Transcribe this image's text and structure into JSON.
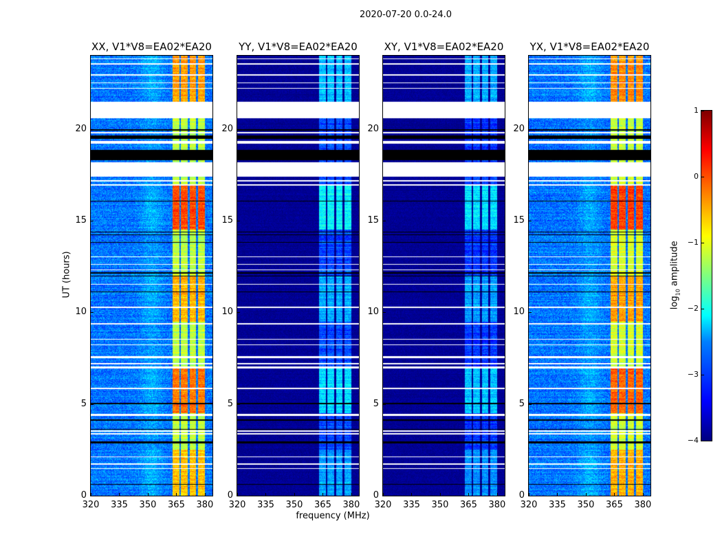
{
  "suptitle": "2020-07-20 0.0-24.0",
  "chart_data": {
    "type": "heatmap",
    "xlabel": "frequency (MHz)",
    "ylabel": "UT (hours)",
    "xlim": [
      320,
      384
    ],
    "ylim": [
      0,
      24
    ],
    "xticks": [
      "320",
      "335",
      "350",
      "365",
      "380"
    ],
    "yticks": [
      "0",
      "5",
      "10",
      "15",
      "20"
    ],
    "colormap": "jet",
    "colorbar": {
      "label_main": "log",
      "label_sub": "10",
      "label_rest": " amplitude",
      "range": [
        -4,
        1
      ],
      "ticks": [
        "−4",
        "−3",
        "−2",
        "−1",
        "0",
        "1"
      ]
    },
    "band_freqs_mhz": [
      [
        363,
        366.5
      ],
      [
        367.5,
        371
      ],
      [
        372,
        375.5
      ],
      [
        376.5,
        380
      ]
    ],
    "white_gaps_ut": [
      [
        20.6,
        21.5
      ],
      [
        17.4,
        18.2
      ],
      [
        19.2,
        19.35
      ],
      [
        19.75,
        19.85
      ],
      [
        23.5,
        23.6
      ],
      [
        23.8,
        23.85
      ],
      [
        22.9,
        23.0
      ],
      [
        22.5,
        22.55
      ],
      [
        22.2,
        22.25
      ],
      [
        16.9,
        17.0
      ],
      [
        17.15,
        17.2
      ],
      [
        12.3,
        12.35
      ],
      [
        12.6,
        12.65
      ],
      [
        13.0,
        13.05
      ],
      [
        11.5,
        11.55
      ],
      [
        10.25,
        10.3
      ],
      [
        9.35,
        9.4
      ],
      [
        8.5,
        8.55
      ],
      [
        8.2,
        8.25
      ],
      [
        7.5,
        7.6
      ],
      [
        7.15,
        7.25
      ],
      [
        6.95,
        7.05
      ],
      [
        5.8,
        5.9
      ],
      [
        4.35,
        4.45
      ],
      [
        3.5,
        3.55
      ],
      [
        3.35,
        3.4
      ],
      [
        2.1,
        2.15
      ],
      [
        1.7,
        1.75
      ],
      [
        1.45,
        1.5
      ]
    ],
    "black_gaps_ut": [
      [
        18.3,
        18.85
      ],
      [
        19.45,
        19.65
      ],
      [
        19.9,
        20.0
      ],
      [
        12.1,
        12.2
      ],
      [
        14.2,
        14.25
      ],
      [
        13.8,
        13.85
      ],
      [
        11.95,
        12.0
      ],
      [
        11.1,
        11.15
      ],
      [
        5.0,
        5.05
      ],
      [
        4.1,
        4.15
      ],
      [
        3.6,
        3.65
      ],
      [
        2.85,
        2.95
      ],
      [
        0.6,
        0.65
      ],
      [
        16.05,
        16.1
      ],
      [
        14.35,
        14.4
      ]
    ],
    "active_periods_ut": [
      [
        14.5,
        17.0,
        1.2
      ],
      [
        4.5,
        7.0,
        1.0
      ],
      [
        0.0,
        2.5,
        0.6
      ],
      [
        21.5,
        24.0,
        0.8
      ],
      [
        9.5,
        12.0,
        0.7
      ]
    ],
    "panels": [
      {
        "title": "XX, V1*V8=EA02*EA20",
        "base_log_amp": -2.8,
        "band_log_amp": -1.2,
        "noise": 0.35
      },
      {
        "title": "YY, V1*V8=EA02*EA20",
        "base_log_amp": -3.9,
        "band_log_amp": -3.0,
        "noise": 0.12
      },
      {
        "title": "XY, V1*V8=EA02*EA20",
        "base_log_amp": -3.9,
        "band_log_amp": -3.1,
        "noise": 0.12
      },
      {
        "title": "YX, V1*V8=EA02*EA20",
        "base_log_amp": -2.8,
        "band_log_amp": -1.1,
        "noise": 0.35
      }
    ]
  }
}
